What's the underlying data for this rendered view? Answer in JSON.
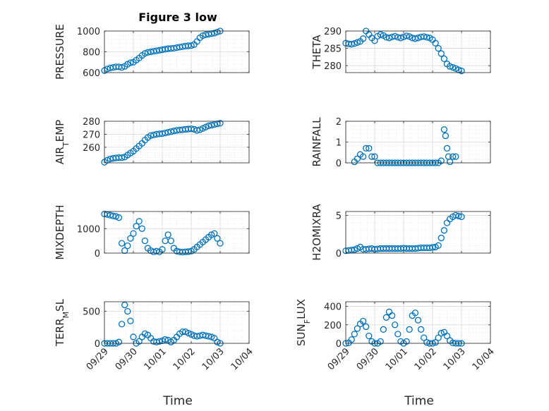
{
  "figure": {
    "title": "Figure 3 low",
    "xlabel": "Time"
  },
  "colors": {
    "marker": "#0072BD",
    "axis": "#262626",
    "grid": "#dfdfdf"
  },
  "chart_data": [
    {
      "id": "pressure",
      "type": "scatter",
      "title": "Figure 3 low",
      "xlabel": "",
      "ylabel": "PRESSURE",
      "ylabel_sub": "",
      "xlim": [
        "09/29",
        "10/04"
      ],
      "xticks": [],
      "ylim": [
        600,
        1000
      ],
      "yticks": [
        600,
        800,
        1000
      ],
      "x": [
        0,
        0.1,
        0.2,
        0.3,
        0.4,
        0.5,
        0.6,
        0.7,
        0.8,
        0.9,
        1,
        1.1,
        1.2,
        1.3,
        1.4,
        1.5,
        1.6,
        1.7,
        1.8,
        1.9,
        2,
        2.1,
        2.2,
        2.3,
        2.4,
        2.5,
        2.6,
        2.7,
        2.8,
        2.9,
        3,
        3.1,
        3.2,
        3.3,
        3.4,
        3.5,
        3.6,
        3.7,
        3.8,
        3.9,
        4
      ],
      "y": [
        620,
        635,
        645,
        650,
        655,
        655,
        650,
        660,
        680,
        695,
        700,
        720,
        740,
        765,
        785,
        795,
        800,
        805,
        810,
        815,
        820,
        825,
        830,
        832,
        835,
        840,
        845,
        850,
        855,
        858,
        860,
        870,
        900,
        935,
        955,
        965,
        970,
        975,
        980,
        990,
        1000
      ]
    },
    {
      "id": "theta",
      "type": "scatter",
      "xlabel": "",
      "ylabel": "THETA",
      "ylabel_sub": "",
      "xlim": [
        "09/29",
        "10/04"
      ],
      "xticks": [],
      "ylim": [
        278,
        290
      ],
      "yticks": [
        280,
        285,
        290
      ],
      "x": [
        0,
        0.1,
        0.2,
        0.3,
        0.4,
        0.5,
        0.6,
        0.7,
        0.8,
        0.9,
        1,
        1.1,
        1.2,
        1.3,
        1.4,
        1.5,
        1.6,
        1.7,
        1.8,
        1.9,
        2,
        2.1,
        2.2,
        2.3,
        2.4,
        2.5,
        2.6,
        2.7,
        2.8,
        2.9,
        3,
        3.1,
        3.2,
        3.3,
        3.4,
        3.5,
        3.6,
        3.7,
        3.8,
        3.9,
        4
      ],
      "y": [
        286.5,
        286.3,
        286.2,
        286.4,
        286.7,
        287,
        287.8,
        290,
        289,
        288,
        287.2,
        288.5,
        289,
        288.7,
        288.2,
        288,
        288.3,
        288.5,
        288.2,
        288,
        288.3,
        288.6,
        288.4,
        288,
        287.8,
        288,
        288.3,
        288.4,
        288.2,
        288,
        287.5,
        286.5,
        285,
        283.5,
        282,
        280.5,
        279.8,
        279.5,
        279.2,
        278.8,
        278.5
      ]
    },
    {
      "id": "air_temp",
      "type": "scatter",
      "xlabel": "",
      "ylabel": "AIR",
      "ylabel_sub": "T",
      "ylabel_rest": "EMP",
      "xlim": [
        "09/29",
        "10/04"
      ],
      "xticks": [],
      "ylim": [
        248,
        280
      ],
      "yticks": [
        260,
        270,
        280
      ],
      "x": [
        0,
        0.1,
        0.2,
        0.3,
        0.4,
        0.5,
        0.6,
        0.7,
        0.8,
        0.9,
        1,
        1.1,
        1.2,
        1.3,
        1.4,
        1.5,
        1.6,
        1.7,
        1.8,
        1.9,
        2,
        2.1,
        2.2,
        2.3,
        2.4,
        2.5,
        2.6,
        2.7,
        2.8,
        2.9,
        3,
        3.1,
        3.2,
        3.3,
        3.4,
        3.5,
        3.6,
        3.7,
        3.8,
        3.9,
        4
      ],
      "y": [
        248.5,
        250,
        251,
        251.5,
        251.8,
        252,
        252,
        252.5,
        254,
        255.5,
        257,
        259,
        261,
        263,
        265.5,
        267.5,
        269,
        269.5,
        270,
        270.3,
        270.5,
        271,
        271.5,
        272,
        272.5,
        273,
        273.3,
        273.5,
        273.8,
        274,
        274.2,
        273.8,
        273,
        273.5,
        274.5,
        275.5,
        276.5,
        277,
        277.5,
        278,
        278.5
      ]
    },
    {
      "id": "rainfall",
      "type": "scatter",
      "xlabel": "",
      "ylabel": "RAINFALL",
      "ylabel_sub": "",
      "xlim": [
        "09/29",
        "10/04"
      ],
      "xticks": [],
      "ylim": [
        0,
        2
      ],
      "yticks": [
        0,
        1,
        2
      ],
      "x": [
        0.3,
        0.4,
        0.5,
        0.6,
        0.7,
        0.8,
        0.9,
        1,
        1.1,
        1.2,
        1.3,
        1.4,
        1.5,
        1.6,
        1.7,
        1.8,
        1.9,
        2,
        2.1,
        2.2,
        2.3,
        2.4,
        2.5,
        2.6,
        2.7,
        2.8,
        2.9,
        3,
        3.1,
        3.2,
        3.3,
        3.4,
        3.45,
        3.5,
        3.55,
        3.6,
        3.7,
        3.8
      ],
      "y": [
        0.05,
        0.2,
        0.4,
        0.3,
        0.7,
        0.7,
        0.3,
        0.3,
        0,
        0,
        0,
        0,
        0,
        0,
        0,
        0,
        0,
        0,
        0,
        0,
        0,
        0,
        0,
        0,
        0,
        0,
        0,
        0,
        0,
        0,
        0.1,
        1.6,
        1.3,
        0.7,
        0.3,
        0.05,
        0.3,
        0.3
      ]
    },
    {
      "id": "mixdepth",
      "type": "scatter",
      "xlabel": "",
      "ylabel": "MIXDEPTH",
      "ylabel_sub": "",
      "xlim": [
        "09/29",
        "10/04"
      ],
      "xticks": [],
      "ylim": [
        0,
        1700
      ],
      "yticks": [
        0,
        1000
      ],
      "x": [
        0,
        0.1,
        0.2,
        0.3,
        0.4,
        0.5,
        0.6,
        0.7,
        0.8,
        0.9,
        1,
        1.1,
        1.2,
        1.3,
        1.4,
        1.5,
        1.6,
        1.7,
        1.8,
        1.9,
        2,
        2.1,
        2.2,
        2.3,
        2.4,
        2.5,
        2.6,
        2.7,
        2.8,
        2.9,
        3,
        3.1,
        3.2,
        3.3,
        3.4,
        3.5,
        3.6,
        3.7,
        3.8,
        3.9,
        4
      ],
      "y": [
        1600,
        1580,
        1550,
        1520,
        1500,
        1450,
        400,
        100,
        300,
        600,
        800,
        1100,
        1300,
        1000,
        500,
        200,
        100,
        50,
        80,
        50,
        150,
        500,
        750,
        500,
        200,
        80,
        50,
        40,
        50,
        60,
        80,
        150,
        250,
        350,
        450,
        550,
        650,
        750,
        800,
        600,
        400
      ]
    },
    {
      "id": "h2omixra",
      "type": "scatter",
      "xlabel": "",
      "ylabel": "H2OMIXRA",
      "ylabel_sub": "",
      "xlim": [
        "09/29",
        "10/04"
      ],
      "xticks": [],
      "ylim": [
        0,
        5.5
      ],
      "yticks": [
        0,
        5
      ],
      "x": [
        0,
        0.1,
        0.2,
        0.3,
        0.4,
        0.5,
        0.6,
        0.7,
        0.8,
        0.9,
        1,
        1.1,
        1.2,
        1.3,
        1.4,
        1.5,
        1.6,
        1.7,
        1.8,
        1.9,
        2,
        2.1,
        2.2,
        2.3,
        2.4,
        2.5,
        2.6,
        2.7,
        2.8,
        2.9,
        3,
        3.1,
        3.2,
        3.3,
        3.4,
        3.5,
        3.6,
        3.7,
        3.8,
        3.9,
        4
      ],
      "y": [
        0.3,
        0.35,
        0.4,
        0.45,
        0.6,
        0.8,
        0.5,
        0.5,
        0.55,
        0.6,
        0.5,
        0.55,
        0.6,
        0.6,
        0.6,
        0.6,
        0.6,
        0.6,
        0.6,
        0.6,
        0.65,
        0.6,
        0.6,
        0.6,
        0.6,
        0.65,
        0.7,
        0.7,
        0.7,
        0.7,
        0.75,
        0.8,
        1,
        2,
        3,
        4,
        4.5,
        4.8,
        5,
        4.9,
        4.8
      ]
    },
    {
      "id": "terr_msl",
      "type": "scatter",
      "xlabel": "Time",
      "ylabel": "TERR",
      "ylabel_sub": "M",
      "ylabel_rest": "SL",
      "xlim": [
        "09/29",
        "10/04"
      ],
      "xticks": [
        "09/29",
        "09/30",
        "10/01",
        "10/02",
        "10/03",
        "10/04"
      ],
      "ylim": [
        0,
        650
      ],
      "yticks": [
        0,
        500
      ],
      "x": [
        0,
        0.1,
        0.2,
        0.3,
        0.4,
        0.5,
        0.6,
        0.7,
        0.8,
        0.9,
        1,
        1.1,
        1.2,
        1.3,
        1.4,
        1.5,
        1.6,
        1.7,
        1.8,
        1.9,
        2,
        2.1,
        2.2,
        2.3,
        2.4,
        2.5,
        2.6,
        2.7,
        2.8,
        2.9,
        3,
        3.1,
        3.2,
        3.3,
        3.4,
        3.5,
        3.6,
        3.7,
        3.8,
        3.9,
        4
      ],
      "y": [
        0,
        0,
        0,
        0,
        0,
        20,
        300,
        600,
        500,
        350,
        100,
        0,
        30,
        100,
        150,
        130,
        80,
        30,
        20,
        30,
        40,
        60,
        50,
        20,
        50,
        100,
        150,
        180,
        180,
        160,
        140,
        120,
        110,
        120,
        130,
        120,
        110,
        100,
        80,
        20,
        0
      ]
    },
    {
      "id": "sun_flux",
      "type": "scatter",
      "xlabel": "Time",
      "ylabel": "SUN",
      "ylabel_sub": "F",
      "ylabel_rest": "LUX",
      "xlim": [
        "09/29",
        "10/04"
      ],
      "xticks": [
        "09/29",
        "09/30",
        "10/01",
        "10/02",
        "10/03",
        "10/04"
      ],
      "ylim": [
        0,
        450
      ],
      "yticks": [
        0,
        200,
        400
      ],
      "x": [
        0,
        0.1,
        0.2,
        0.3,
        0.4,
        0.5,
        0.6,
        0.7,
        0.8,
        0.9,
        1,
        1.1,
        1.2,
        1.3,
        1.4,
        1.5,
        1.6,
        1.7,
        1.8,
        1.9,
        2,
        2.1,
        2.2,
        2.3,
        2.4,
        2.5,
        2.6,
        2.7,
        2.8,
        2.9,
        3,
        3.1,
        3.2,
        3.3,
        3.4,
        3.5,
        3.6,
        3.7,
        3.8,
        3.9,
        4
      ],
      "y": [
        0,
        5,
        40,
        100,
        160,
        210,
        240,
        180,
        80,
        20,
        0,
        0,
        20,
        150,
        280,
        340,
        300,
        200,
        100,
        20,
        0,
        20,
        150,
        300,
        330,
        250,
        150,
        60,
        10,
        0,
        0,
        10,
        60,
        110,
        120,
        80,
        30,
        5,
        0,
        0,
        0
      ]
    }
  ]
}
